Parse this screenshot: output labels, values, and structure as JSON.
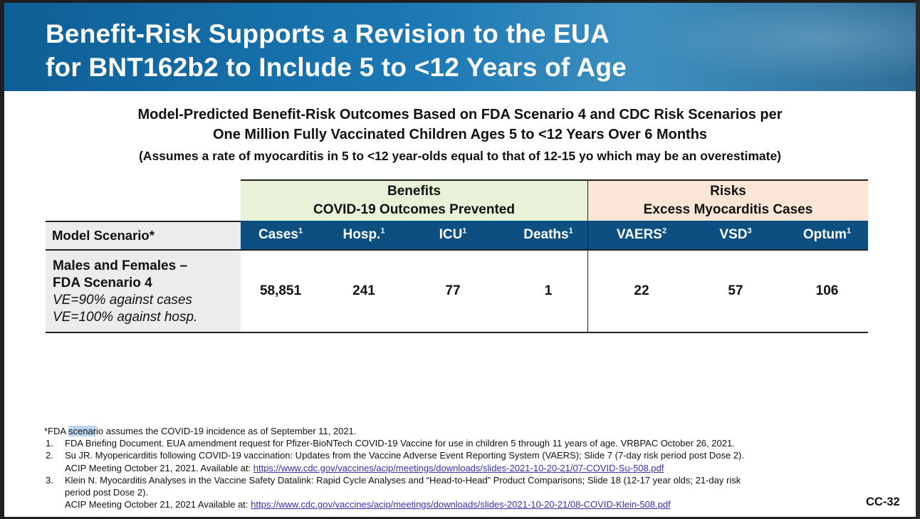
{
  "title": {
    "line1": "Benefit-Risk Supports a Revision to the EUA",
    "line2": "for BNT162b2 to Include 5 to <12 Years of Age"
  },
  "subtitle": {
    "line1": "Model-Predicted Benefit-Risk Outcomes Based on FDA Scenario 4 and CDC Risk Scenarios per",
    "line2": "One Million Fully Vaccinated Children Ages 5 to <12 Years Over 6 Months"
  },
  "assumption": "(Assumes a rate of myocarditis in 5 to <12 year-olds equal to that of 12-15 yo which may be an overestimate)",
  "table": {
    "benefits_group": {
      "line1": "Benefits",
      "line2": "COVID-19 Outcomes Prevented"
    },
    "risks_group": {
      "line1": "Risks",
      "line2": "Excess Myocarditis Cases"
    },
    "scenario_header": "Model Scenario*",
    "columns": [
      {
        "label": "Cases",
        "sup": "1"
      },
      {
        "label": "Hosp.",
        "sup": "1"
      },
      {
        "label": "ICU",
        "sup": "1"
      },
      {
        "label": "Deaths",
        "sup": "1"
      },
      {
        "label": "VAERS",
        "sup": "2"
      },
      {
        "label": "VSD",
        "sup": "3"
      },
      {
        "label": "Optum",
        "sup": "1"
      }
    ],
    "row": {
      "scenario_line1": "Males and Females –",
      "scenario_line2": "FDA Scenario 4",
      "scenario_line3": "VE=90% against cases",
      "scenario_line4": "VE=100% against hosp.",
      "values": [
        "58,851",
        "241",
        "77",
        "1",
        "22",
        "57",
        "106"
      ]
    }
  },
  "footnotes": {
    "star_pre": "*FDA ",
    "star_hl": "scenar",
    "star_post": "io assumes the COVID-19 incidence as of September 11, 2021.",
    "n1_num": "1.",
    "n1": "FDA Briefing Document. EUA amendment request for Pfizer-BioNTech COVID-19 Vaccine for use in children 5 through 11 years of age. VRBPAC October 26, 2021.",
    "n2_num": "2.",
    "n2_line1": "Su JR. Myopericarditis following COVID-19 vaccination: Updates from the Vaccine Adverse Event Reporting System (VAERS); Slide 7 (7-day risk period post Dose 2).",
    "n2_line2_pre": "ACIP Meeting October 21, 2021. Available at: ",
    "n2_link": "https://www.cdc.gov/vaccines/acip/meetings/downloads/slides-2021-10-20-21/07-COVID-Su-508.pdf",
    "n3_num": "3.",
    "n3_line1": "Klein N. Myocarditis Analyses in the Vaccine Safety Datalink: Rapid Cycle Analyses and “Head-to-Head” Product Comparisons; Slide 18 (12-17 year olds; 21-day risk",
    "n3_line2": "period post Dose 2).",
    "n3_line3_pre": "ACIP Meeting October 21, 2021 Available at: ",
    "n3_link": "https://www.cdc.gov/vaccines/acip/meetings/downloads/slides-2021-10-20-21/08-COVID-Klein-508.pdf"
  },
  "slide_number": "CC-32",
  "colors": {
    "header_blue": "#1b78b4",
    "column_header_blue": "#0c4f80",
    "benefits_fill": "#e9f2d8",
    "risks_fill": "#fbe5d6",
    "scenario_fill": "#ececec"
  }
}
